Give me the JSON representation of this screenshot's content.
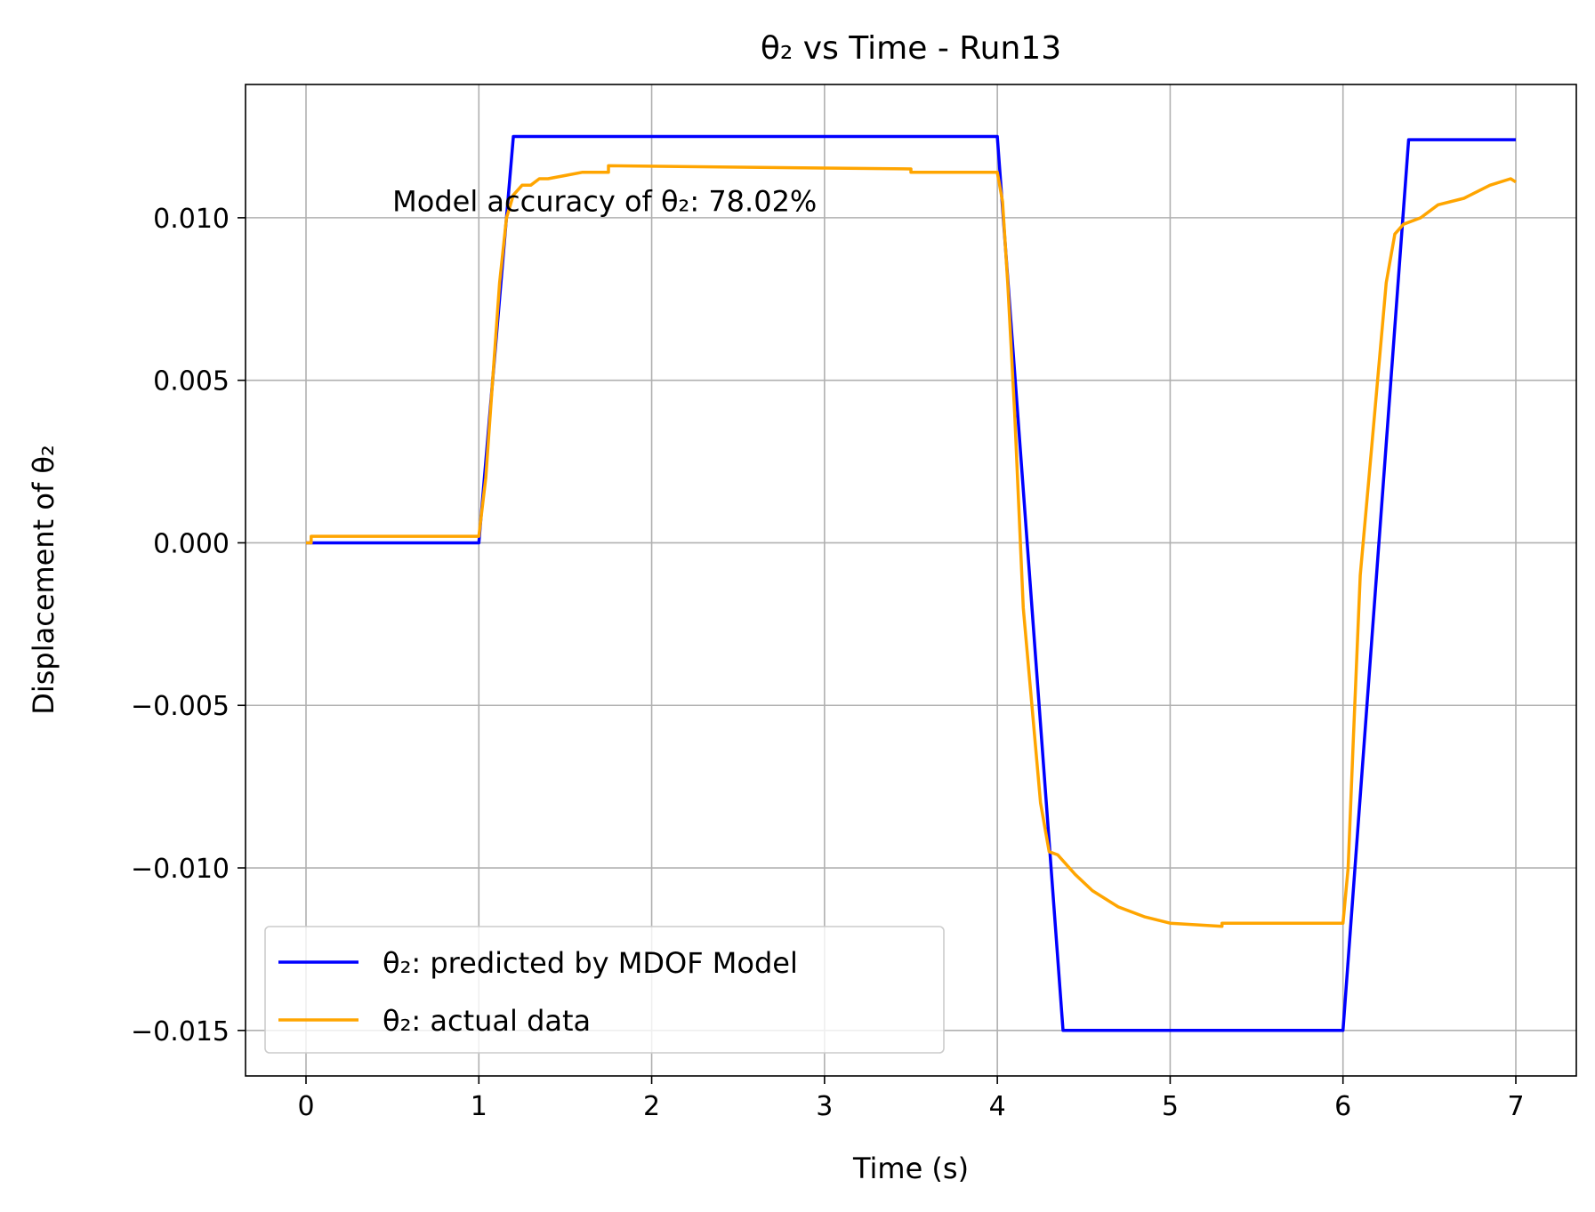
{
  "chart_data": {
    "type": "line",
    "title": "θ₂ vs Time - Run13",
    "xlabel": "Time (s)",
    "ylabel": "Displacement of θ₂",
    "xlim": [
      -0.35,
      7.35
    ],
    "ylim": [
      -0.0164,
      0.0141
    ],
    "xticks": [
      0,
      1,
      2,
      3,
      4,
      5,
      6,
      7
    ],
    "xtick_labels": [
      "0",
      "1",
      "2",
      "3",
      "4",
      "5",
      "6",
      "7"
    ],
    "yticks": [
      0.01,
      0.005,
      0.0,
      -0.005,
      -0.01,
      -0.015
    ],
    "ytick_labels": [
      "0.010",
      "0.005",
      "0.000",
      "−0.005",
      "−0.010",
      "−0.015"
    ],
    "grid": true,
    "legend_position": "lower-left",
    "annotation": {
      "text": "Model accuracy of θ₂: 78.02%",
      "x": 0.5,
      "y": 0.0102
    },
    "series": [
      {
        "name": "θ₂: predicted by MDOF Model",
        "color": "#0000ff",
        "x": [
          0,
          1.0,
          1.2,
          4.0,
          4.38,
          6.0,
          6.38,
          7.0
        ],
        "y": [
          0,
          0,
          0.0125,
          0.0125,
          -0.015,
          -0.015,
          0.0124,
          0.0124
        ]
      },
      {
        "name": "θ₂: actual data",
        "color": "#ffa500",
        "x": [
          0,
          0.03,
          0.03,
          1.0,
          1.04,
          1.08,
          1.12,
          1.16,
          1.2,
          1.25,
          1.3,
          1.35,
          1.4,
          1.5,
          1.6,
          1.75,
          1.75,
          3.5,
          3.5,
          4.0,
          4.03,
          4.06,
          4.1,
          4.15,
          4.2,
          4.25,
          4.3,
          4.35,
          4.45,
          4.55,
          4.7,
          4.85,
          5.0,
          5.3,
          5.3,
          6.0,
          6.03,
          6.06,
          6.1,
          6.15,
          6.2,
          6.25,
          6.3,
          6.35,
          6.45,
          6.55,
          6.7,
          6.85,
          6.97,
          7.0
        ],
        "y": [
          0,
          0,
          0.0002,
          0.0002,
          0.002,
          0.005,
          0.008,
          0.01,
          0.0107,
          0.011,
          0.011,
          0.0112,
          0.0112,
          0.0113,
          0.0114,
          0.0114,
          0.0116,
          0.0115,
          0.0114,
          0.0114,
          0.0105,
          0.008,
          0.004,
          -0.002,
          -0.005,
          -0.008,
          -0.0095,
          -0.0096,
          -0.0102,
          -0.0107,
          -0.0112,
          -0.0115,
          -0.0117,
          -0.0118,
          -0.0117,
          -0.0117,
          -0.01,
          -0.006,
          -0.001,
          0.002,
          0.005,
          0.008,
          0.0095,
          0.0098,
          0.01,
          0.0104,
          0.0106,
          0.011,
          0.0112,
          0.0111
        ]
      }
    ]
  }
}
